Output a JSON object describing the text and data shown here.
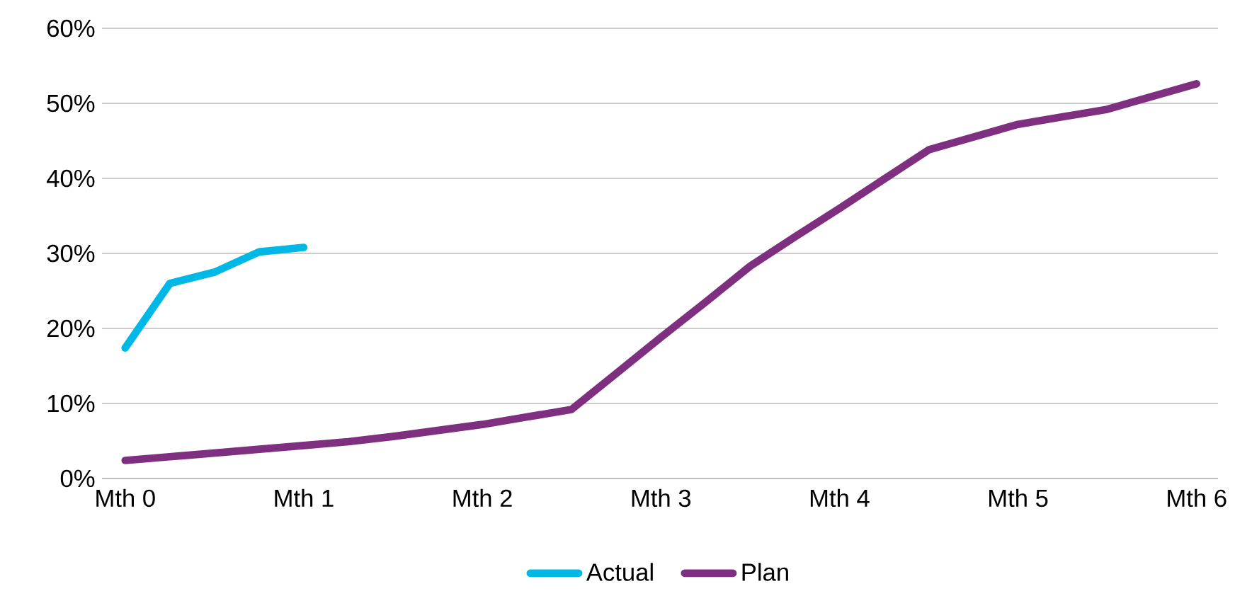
{
  "chart_data": {
    "type": "line",
    "categories": [
      "Mth 0",
      null,
      null,
      null,
      "Mth 1",
      null,
      null,
      null,
      "Mth 2",
      null,
      null,
      null,
      "Mth 3",
      null,
      null,
      null,
      "Mth 4",
      null,
      null,
      null,
      "Mth 5",
      null,
      null,
      null,
      "Mth 6"
    ],
    "ylim": [
      0,
      60
    ],
    "yticks": [
      {
        "value": 0,
        "label": "0%"
      },
      {
        "value": 10,
        "label": "10%"
      },
      {
        "value": 20,
        "label": "20%"
      },
      {
        "value": 30,
        "label": "30%"
      },
      {
        "value": 40,
        "label": "40%"
      },
      {
        "value": 50,
        "label": "50%"
      },
      {
        "value": 60,
        "label": "60%"
      }
    ],
    "grid": "y",
    "legend": "bottom",
    "marker": "none",
    "line_style": "solid",
    "series": [
      {
        "name": "Actual",
        "color": "#00b8e6",
        "values": [
          17.4,
          26,
          27.5,
          30.2,
          30.8,
          null,
          null,
          null,
          null,
          null,
          null,
          null,
          null,
          null,
          null,
          null,
          null,
          null,
          null,
          null,
          null,
          null,
          null,
          null,
          null
        ]
      },
      {
        "name": "Plan",
        "color": "#7f2f7f",
        "values": [
          2.4,
          2.9,
          3.4,
          3.9,
          4.4,
          4.9,
          5.6,
          6.4,
          7.2,
          8.2,
          9.2,
          14,
          18.8,
          23.5,
          28.3,
          32.2,
          36,
          39.9,
          43.8,
          45.5,
          47.2,
          48.2,
          49.2,
          50.9,
          52.6
        ]
      }
    ]
  }
}
